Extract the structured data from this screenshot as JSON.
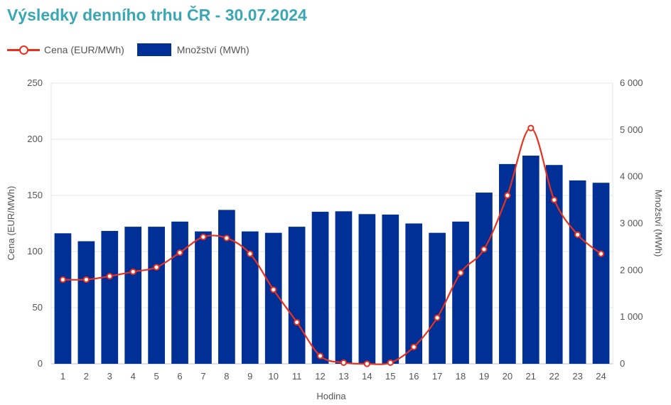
{
  "chart_data": {
    "type": "bar",
    "title": "Výsledky denního trhu ČR - 30.07.2024",
    "xlabel": "Hodina",
    "categories": [
      "1",
      "2",
      "3",
      "4",
      "5",
      "6",
      "7",
      "8",
      "9",
      "10",
      "11",
      "12",
      "13",
      "14",
      "15",
      "16",
      "17",
      "18",
      "19",
      "20",
      "21",
      "22",
      "23",
      "24"
    ],
    "series": [
      {
        "name": "Cena (EUR/MWh)",
        "type": "line",
        "axis": "left",
        "color": "#e8311f",
        "values": [
          75,
          75,
          78,
          82,
          86,
          99,
          113,
          112,
          98,
          66,
          37,
          7,
          1,
          0,
          1,
          15,
          41,
          81,
          102,
          150,
          210,
          146,
          115,
          98
        ]
      },
      {
        "name": "Množství (MWh)",
        "type": "bar",
        "axis": "right",
        "color": "#002f95",
        "values": [
          2790,
          2620,
          2840,
          2930,
          2930,
          3040,
          2830,
          3290,
          2830,
          2800,
          2930,
          3250,
          3260,
          3200,
          3190,
          3000,
          2800,
          3040,
          3660,
          4270,
          4450,
          4250,
          3920,
          3870
        ]
      }
    ],
    "y_left": {
      "label": "Cena (EUR/MWh)",
      "min": 0,
      "max": 250,
      "ticks": [
        0,
        50,
        100,
        150,
        200,
        250
      ],
      "tick_labels": [
        "0",
        "50",
        "100",
        "150",
        "200",
        "250"
      ]
    },
    "y_right": {
      "label": "Množství (MWh)",
      "min": 0,
      "max": 6000,
      "ticks": [
        0,
        1000,
        2000,
        3000,
        4000,
        5000,
        6000
      ],
      "tick_labels": [
        "0",
        "1 000",
        "2 000",
        "3 000",
        "4 000",
        "5 000",
        "6 000"
      ]
    },
    "grid": true,
    "legend_position": "top-left"
  }
}
